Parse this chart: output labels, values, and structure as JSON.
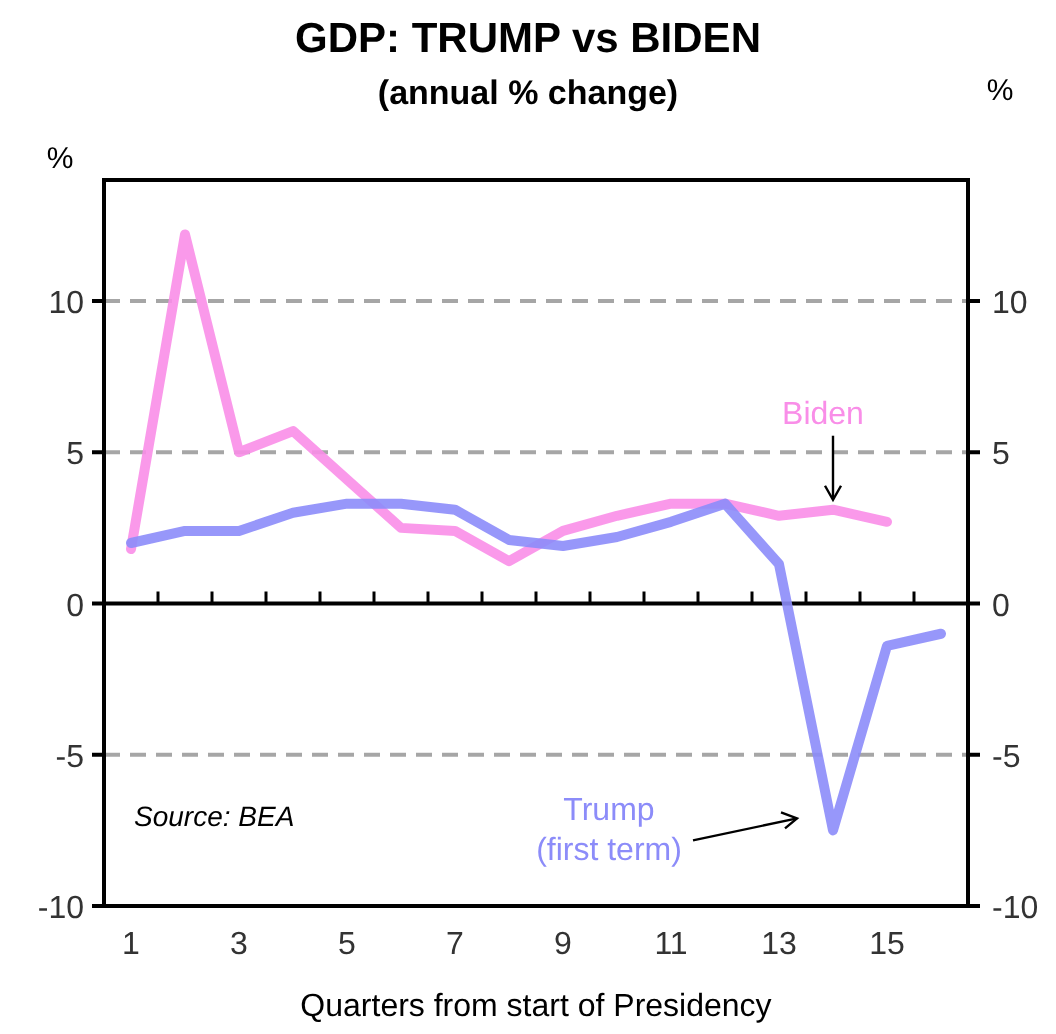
{
  "chart_data": {
    "type": "line",
    "title": "GDP: TRUMP vs BIDEN",
    "subtitle": "(annual % change)",
    "xlabel": "Quarters from start of Presidency",
    "ylabel": "%",
    "y2label": "%",
    "x": [
      1,
      2,
      3,
      4,
      5,
      6,
      7,
      8,
      9,
      10,
      11,
      12,
      13,
      14,
      15,
      16
    ],
    "xlim": [
      0.5,
      16.5
    ],
    "xticks": [
      1,
      {
        "value": 1.5,
        "label": null
      },
      {
        "value": 2.5,
        "label": null
      },
      3,
      {
        "value": 3.5,
        "label": null
      },
      {
        "value": 4.5,
        "label": null
      },
      5,
      {
        "value": 5.5,
        "label": null
      },
      {
        "value": 6.5,
        "label": null
      },
      7,
      {
        "value": 7.5,
        "label": null
      },
      {
        "value": 8.5,
        "label": null
      },
      9,
      {
        "value": 9.5,
        "label": null
      },
      {
        "value": 10.5,
        "label": null
      },
      11,
      {
        "value": 11.5,
        "label": null
      },
      {
        "value": 12.5,
        "label": null
      },
      13,
      {
        "value": 13.5,
        "label": null
      },
      {
        "value": 14.5,
        "label": null
      },
      15,
      {
        "value": 15.5,
        "label": null
      }
    ],
    "ylim": [
      -10,
      14
    ],
    "yticks": [
      -10,
      -5,
      0,
      5,
      10
    ],
    "y2lim": [
      -10,
      14
    ],
    "y2ticks": [
      -10,
      -5,
      0,
      5,
      10
    ],
    "grid": "y",
    "line_style": "solid",
    "series": [
      {
        "name": "Biden",
        "color": "#f98ee8",
        "values": [
          1.8,
          12.2,
          5.0,
          5.7,
          4.1,
          2.5,
          2.4,
          1.4,
          2.4,
          2.9,
          3.3,
          3.3,
          2.9,
          3.1,
          2.7,
          null
        ]
      },
      {
        "name": "Trump (first term)",
        "color": "#8c8cf9",
        "values": [
          2.0,
          2.4,
          2.4,
          3.0,
          3.3,
          3.3,
          3.1,
          2.1,
          1.9,
          2.2,
          2.7,
          3.3,
          1.3,
          -7.5,
          -1.4,
          -1.0
        ]
      }
    ],
    "annotations": [
      "Source: BEA"
    ]
  }
}
